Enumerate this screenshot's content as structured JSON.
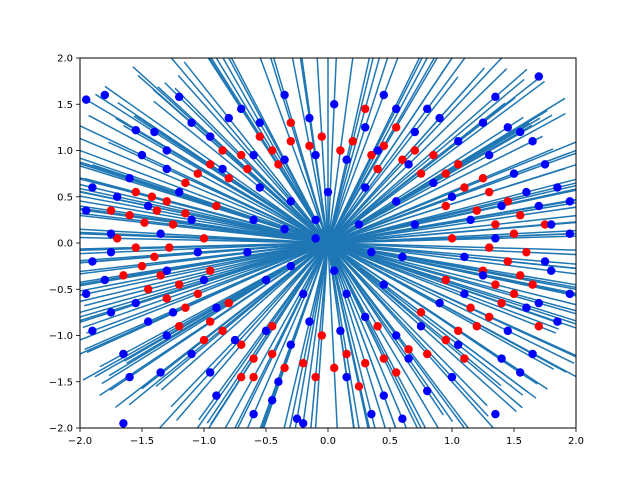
{
  "chart_data": {
    "type": "scatter",
    "title": "",
    "xlabel": "",
    "ylabel": "",
    "xlim": [
      -2.0,
      2.0
    ],
    "ylim": [
      -2.0,
      2.0
    ],
    "grid": false,
    "x_ticks": [
      -2.0,
      -1.5,
      -1.0,
      -0.5,
      0.0,
      0.5,
      1.0,
      1.5,
      2.0
    ],
    "y_ticks": [
      -2.0,
      -1.5,
      -1.0,
      -0.5,
      0.0,
      0.5,
      1.0,
      1.5,
      2.0
    ],
    "x_tick_labels": [
      "−2.0",
      "−1.5",
      "−1.0",
      "−0.5",
      "0.0",
      "0.5",
      "1.0",
      "1.5",
      "2.0"
    ],
    "y_tick_labels": [
      "−2.0",
      "−1.5",
      "−1.0",
      "−0.5",
      "0.0",
      "0.5",
      "1.0",
      "1.5",
      "2.0"
    ],
    "colors": {
      "line": "#1f77b4",
      "red_points": "#ff0000",
      "blue_points": "#0000ff"
    },
    "series": [
      {
        "color": "red",
        "points": [
          [
            -1.55,
            0.55
          ],
          [
            -1.42,
            0.5
          ],
          [
            -1.3,
            0.45
          ],
          [
            -1.6,
            0.3
          ],
          [
            -1.48,
            0.22
          ],
          [
            -1.38,
            0.35
          ],
          [
            -1.25,
            0.2
          ],
          [
            -1.15,
            0.32
          ],
          [
            -1.7,
            0.05
          ],
          [
            -1.55,
            -0.05
          ],
          [
            -1.4,
            -0.15
          ],
          [
            -1.28,
            -0.05
          ],
          [
            -1.5,
            -0.25
          ],
          [
            -1.35,
            -0.35
          ],
          [
            -1.2,
            -0.45
          ],
          [
            -1.45,
            -0.5
          ],
          [
            -1.3,
            -0.6
          ],
          [
            -1.15,
            -0.7
          ],
          [
            -1.05,
            -0.55
          ],
          [
            -0.95,
            -0.85
          ],
          [
            -0.85,
            -0.95
          ],
          [
            -1.0,
            -1.05
          ],
          [
            -0.7,
            -1.1
          ],
          [
            -0.6,
            -1.25
          ],
          [
            -0.45,
            -1.2
          ],
          [
            -0.35,
            -1.35
          ],
          [
            -0.2,
            -1.3
          ],
          [
            -0.1,
            -1.45
          ],
          [
            0.05,
            -1.35
          ],
          [
            0.15,
            -1.2
          ],
          [
            0.3,
            -1.3
          ],
          [
            0.45,
            -1.25
          ],
          [
            0.55,
            -1.4
          ],
          [
            0.65,
            -1.15
          ],
          [
            0.8,
            -1.2
          ],
          [
            0.95,
            -1.05
          ],
          [
            1.05,
            -0.95
          ],
          [
            1.2,
            -0.9
          ],
          [
            1.3,
            -0.8
          ],
          [
            1.15,
            -0.7
          ],
          [
            1.4,
            -0.65
          ],
          [
            1.5,
            -0.55
          ],
          [
            1.35,
            -0.45
          ],
          [
            1.55,
            -0.35
          ],
          [
            1.25,
            -0.3
          ],
          [
            1.45,
            -0.2
          ],
          [
            1.6,
            -0.1
          ],
          [
            1.3,
            -0.05
          ],
          [
            1.5,
            0.1
          ],
          [
            1.35,
            0.2
          ],
          [
            1.55,
            0.3
          ],
          [
            1.2,
            0.35
          ],
          [
            1.45,
            0.45
          ],
          [
            1.3,
            0.55
          ],
          [
            1.1,
            0.6
          ],
          [
            1.25,
            0.7
          ],
          [
            0.95,
            0.75
          ],
          [
            1.05,
            0.85
          ],
          [
            0.85,
            0.95
          ],
          [
            0.7,
            1.0
          ],
          [
            0.6,
            0.9
          ],
          [
            0.45,
            1.05
          ],
          [
            0.35,
            0.95
          ],
          [
            0.2,
            1.1
          ],
          [
            0.1,
            1.0
          ],
          [
            -0.05,
            1.15
          ],
          [
            -0.15,
            1.05
          ],
          [
            -0.3,
            1.1
          ],
          [
            -0.45,
            1.0
          ],
          [
            -0.55,
            1.15
          ],
          [
            -0.7,
            0.95
          ],
          [
            -0.85,
            1.0
          ],
          [
            -0.95,
            0.85
          ],
          [
            -1.05,
            0.75
          ],
          [
            -1.15,
            0.65
          ],
          [
            -0.8,
            0.7
          ],
          [
            -0.65,
            0.8
          ],
          [
            -0.4,
            0.85
          ],
          [
            0.4,
            0.8
          ],
          [
            0.75,
            0.75
          ],
          [
            0.95,
            0.4
          ],
          [
            1.0,
            0.05
          ],
          [
            0.95,
            -0.4
          ],
          [
            0.75,
            -0.75
          ],
          [
            0.4,
            -0.9
          ],
          [
            -0.05,
            -1.0
          ],
          [
            -0.45,
            -0.9
          ],
          [
            -0.8,
            -0.65
          ],
          [
            -0.95,
            -0.3
          ],
          [
            -1.0,
            0.05
          ],
          [
            -0.9,
            0.4
          ],
          [
            -0.6,
            -1.45
          ],
          [
            0.25,
            -1.55
          ],
          [
            1.65,
            -0.45
          ],
          [
            -1.75,
            0.35
          ],
          [
            1.75,
            0.2
          ],
          [
            -0.3,
            1.3
          ],
          [
            0.55,
            1.25
          ],
          [
            1.1,
            -1.25
          ],
          [
            -1.2,
            -0.9
          ],
          [
            1.7,
            -0.9
          ],
          [
            -0.7,
            -1.45
          ],
          [
            0.3,
            1.45
          ],
          [
            -1.65,
            -0.35
          ]
        ]
      },
      {
        "color": "blue",
        "points": [
          [
            -1.95,
            1.55
          ],
          [
            -1.8,
            1.6
          ],
          [
            -1.2,
            1.58
          ],
          [
            -0.35,
            1.6
          ],
          [
            0.45,
            1.6
          ],
          [
            1.35,
            1.58
          ],
          [
            1.7,
            1.8
          ],
          [
            -1.55,
            1.22
          ],
          [
            -0.7,
            1.45
          ],
          [
            0.05,
            1.5
          ],
          [
            0.8,
            1.45
          ],
          [
            1.55,
            1.2
          ],
          [
            -1.9,
            0.6
          ],
          [
            -1.95,
            0.35
          ],
          [
            -1.75,
            0.1
          ],
          [
            -1.9,
            -0.2
          ],
          [
            -1.95,
            -0.55
          ],
          [
            -1.9,
            -0.95
          ],
          [
            -1.65,
            -1.2
          ],
          [
            -1.6,
            -1.45
          ],
          [
            -1.35,
            -1.4
          ],
          [
            -1.65,
            -1.95
          ],
          [
            -0.9,
            -1.65
          ],
          [
            -0.6,
            -1.85
          ],
          [
            -0.25,
            -1.9
          ],
          [
            0.35,
            -1.85
          ],
          [
            0.8,
            -1.6
          ],
          [
            1.35,
            -1.85
          ],
          [
            1.55,
            -1.4
          ],
          [
            1.65,
            -1.2
          ],
          [
            1.85,
            -0.85
          ],
          [
            1.95,
            -0.55
          ],
          [
            1.95,
            0.1
          ],
          [
            1.95,
            0.45
          ],
          [
            1.85,
            0.6
          ],
          [
            1.75,
            0.85
          ],
          [
            1.65,
            1.1
          ],
          [
            1.25,
            1.3
          ],
          [
            0.9,
            1.35
          ],
          [
            -1.1,
            1.3
          ],
          [
            -1.5,
            0.95
          ],
          [
            -1.3,
            0.8
          ],
          [
            -1.6,
            0.7
          ],
          [
            -1.2,
            0.55
          ],
          [
            -1.45,
            0.4
          ],
          [
            -1.1,
            0.25
          ],
          [
            -1.35,
            0.1
          ],
          [
            -1.05,
            -0.1
          ],
          [
            -1.3,
            -0.3
          ],
          [
            -1.0,
            -0.4
          ],
          [
            -1.25,
            -0.75
          ],
          [
            -0.9,
            -0.7
          ],
          [
            -0.75,
            -1.05
          ],
          [
            -0.5,
            -0.95
          ],
          [
            -0.3,
            -1.1
          ],
          [
            -0.15,
            -0.85
          ],
          [
            0.1,
            -0.95
          ],
          [
            0.3,
            -0.8
          ],
          [
            0.55,
            -1.0
          ],
          [
            0.75,
            -0.9
          ],
          [
            0.9,
            -0.65
          ],
          [
            1.1,
            -0.55
          ],
          [
            1.25,
            -0.35
          ],
          [
            1.1,
            -0.15
          ],
          [
            1.35,
            0.05
          ],
          [
            1.15,
            0.25
          ],
          [
            1.4,
            0.4
          ],
          [
            1.0,
            0.5
          ],
          [
            0.85,
            0.65
          ],
          [
            0.65,
            0.85
          ],
          [
            0.4,
            1.0
          ],
          [
            0.15,
            0.9
          ],
          [
            -0.1,
            0.95
          ],
          [
            -0.35,
            0.9
          ],
          [
            -0.6,
            0.95
          ],
          [
            -0.85,
            0.8
          ],
          [
            -0.55,
            0.6
          ],
          [
            -0.3,
            0.45
          ],
          [
            0.0,
            0.55
          ],
          [
            0.3,
            0.6
          ],
          [
            0.55,
            0.45
          ],
          [
            0.7,
            0.2
          ],
          [
            0.6,
            -0.15
          ],
          [
            0.45,
            -0.45
          ],
          [
            0.15,
            -0.55
          ],
          [
            -0.2,
            -0.55
          ],
          [
            -0.5,
            -0.4
          ],
          [
            -0.65,
            -0.1
          ],
          [
            -0.6,
            0.25
          ],
          [
            -0.35,
            0.15
          ],
          [
            -0.1,
            0.25
          ],
          [
            0.25,
            0.2
          ],
          [
            0.35,
            -0.1
          ],
          [
            0.05,
            -0.3
          ],
          [
            -0.3,
            -0.25
          ],
          [
            -0.1,
            0.05
          ],
          [
            -1.75,
            -0.1
          ],
          [
            -1.55,
            -0.65
          ],
          [
            -1.45,
            -0.85
          ],
          [
            -1.1,
            -1.2
          ],
          [
            -0.4,
            -1.5
          ],
          [
            0.15,
            -1.45
          ],
          [
            0.65,
            -1.25
          ],
          [
            1.05,
            -1.1
          ],
          [
            1.45,
            -0.95
          ],
          [
            1.6,
            -0.7
          ],
          [
            1.75,
            -0.2
          ],
          [
            1.7,
            0.4
          ],
          [
            1.5,
            0.75
          ],
          [
            1.3,
            0.95
          ],
          [
            1.05,
            1.1
          ],
          [
            0.7,
            1.2
          ],
          [
            0.3,
            1.25
          ],
          [
            -0.15,
            1.35
          ],
          [
            -0.55,
            1.3
          ],
          [
            -0.95,
            1.15
          ],
          [
            -1.3,
            1.0
          ],
          [
            -1.7,
            0.5
          ],
          [
            -1.8,
            -0.4
          ],
          [
            -1.3,
            -1.0
          ],
          [
            -0.95,
            -1.4
          ],
          [
            -0.45,
            -1.7
          ],
          [
            0.45,
            -1.65
          ],
          [
            1.0,
            -1.45
          ],
          [
            1.4,
            -1.25
          ],
          [
            1.8,
            -0.3
          ],
          [
            1.8,
            0.2
          ],
          [
            1.6,
            0.55
          ],
          [
            -0.8,
            1.35
          ],
          [
            0.55,
            1.45
          ],
          [
            -1.4,
            1.2
          ],
          [
            1.45,
            1.25
          ],
          [
            -1.75,
            -0.75
          ],
          [
            1.7,
            -0.65
          ],
          [
            -0.2,
            -1.95
          ],
          [
            0.6,
            -1.9
          ]
        ]
      }
    ]
  }
}
